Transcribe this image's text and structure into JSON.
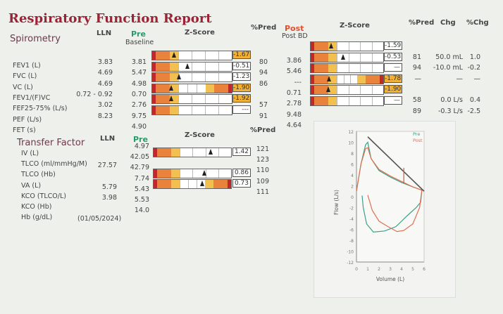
{
  "title": "Respiratory Function Report",
  "spirometry": {
    "section": "Spirometry",
    "lln_header": "LLN",
    "pre_header": "Pre",
    "pre_sub": "Baseline",
    "z_header": "Z-Score",
    "pred_header": "%Pred",
    "post_header": "Post",
    "post_sub": "Post BD",
    "post_z_header": "Z-Score",
    "post_pred_header": "%Pred",
    "chg_header": "Chg",
    "pchg_header": "%Chg",
    "rows": [
      {
        "label": "FEV1 (L)",
        "lln": "3.83",
        "pre": "3.81",
        "pre_pred": "80",
        "post": "3.86",
        "post_pred": "81",
        "chg": "50.0 mL",
        "pchg": "1.0"
      },
      {
        "label": "FVC (L)",
        "lln": "4.69",
        "pre": "5.47",
        "pre_pred": "94",
        "post": "5.46",
        "post_pred": "94",
        "chg": "-10.0 mL",
        "pchg": "-0.2"
      },
      {
        "label": "VC (L)",
        "lln": "4.69",
        "pre": "4.98",
        "pre_pred": "86",
        "post": "---",
        "post_pred": "—",
        "chg": "—",
        "pchg": "—"
      },
      {
        "label": "FEV1/(F)VC",
        "lln": "0.72 - 0.92",
        "pre": "0.70",
        "pre_pred": "",
        "post": "0.71",
        "post_pred": "",
        "chg": "",
        "pchg": ""
      },
      {
        "label": "FEF25-75% (L/s)",
        "lln": "3.02",
        "pre": "2.76",
        "pre_pred": "57",
        "post": "2.78",
        "post_pred": "58",
        "chg": "0.0 L/s",
        "pchg": "0.4"
      },
      {
        "label": "PEF (L/s)",
        "lln": "8.23",
        "pre": "9.75",
        "pre_pred": "91",
        "post": "9.48",
        "post_pred": "89",
        "chg": "-0.3 L/s",
        "pchg": "-2.5"
      },
      {
        "label": "FET (s)",
        "lln": "",
        "pre": "4.90",
        "pre_pred": "",
        "post": "4.64",
        "post_pred": "",
        "chg": "",
        "pchg": ""
      }
    ],
    "pre_z": [
      {
        "text": "-1.67",
        "z": -1.67,
        "hi": true,
        "two": false
      },
      {
        "text": "-0.51",
        "z": -0.51,
        "hi": false,
        "two": false
      },
      {
        "text": "-1.23",
        "z": -1.23,
        "hi": false,
        "two": false
      },
      {
        "text": "-1.90",
        "z": -1.9,
        "hi": true,
        "two": true
      },
      {
        "text": "-1.92",
        "z": -1.92,
        "hi": true,
        "two": false
      },
      {
        "text": "---",
        "z": null,
        "hi": false,
        "two": false
      }
    ],
    "post_z": [
      {
        "text": "-1.59",
        "z": -1.59,
        "hi": false,
        "two": false
      },
      {
        "text": "-0.53",
        "z": -0.53,
        "hi": false,
        "two": false
      },
      {
        "text": "—",
        "z": null,
        "hi": false,
        "two": false
      },
      {
        "text": "-1.78",
        "z": -1.78,
        "hi": true,
        "two": true
      },
      {
        "text": "-1.90",
        "z": -1.9,
        "hi": true,
        "two": false
      },
      {
        "text": "—",
        "z": null,
        "hi": false,
        "two": false
      }
    ]
  },
  "transfer": {
    "section": "Transfer Factor",
    "lln_header": "LLN",
    "pre_header": "Pre",
    "z_header": "Z-Score",
    "pred_header": "%Pred",
    "rows": [
      {
        "label": "IV (L)",
        "lln": "",
        "pre": "4.97"
      },
      {
        "label": "TLCO (ml/mmHg/M)",
        "lln": "27.57",
        "pre": "42.05"
      },
      {
        "label": "TLCO (Hb)",
        "lln": "",
        "pre": "42.79"
      },
      {
        "label": "VA (L)",
        "lln": "5.79",
        "pre": "7.74"
      },
      {
        "label": "KCO (TLCO/L)",
        "lln": "3.98",
        "pre": "5.43"
      },
      {
        "label": "KCO (Hb)",
        "lln": "",
        "pre": "5.53"
      },
      {
        "label": "Hb (g/dL)",
        "lln": "(01/05/2024)",
        "pre": "14.0"
      }
    ],
    "pred": [
      "121",
      "123",
      "110",
      "109",
      "111"
    ],
    "z": [
      {
        "text": "1.42",
        "z": 1.42,
        "hi": false,
        "two": false
      },
      {
        "text": "0.86",
        "z": 0.86,
        "hi": false,
        "two": false
      },
      {
        "text": "0.73",
        "z": 0.73,
        "hi": false,
        "two": true
      }
    ]
  },
  "colors": {
    "red": "#c0282a",
    "orange": "#e9823a",
    "yellow": "#f2c050",
    "pre": "#3aa08a",
    "post": "#e07050",
    "predicted": "#555555"
  },
  "chart_data": {
    "type": "line",
    "xlabel": "Volume (L)",
    "ylabel": "Flow (L/s)",
    "xlim": [
      0,
      6
    ],
    "ylim": [
      -12,
      12
    ],
    "xticks": [
      "0",
      "1",
      "2",
      "3",
      "4",
      "5",
      "6"
    ],
    "yticks": [
      "12",
      "10",
      "8",
      "6",
      "4",
      "2",
      "0",
      "-2",
      "-4",
      "-6",
      "-8",
      "-10",
      "-12"
    ],
    "legend": "top-right",
    "series": [
      {
        "name": "Pre",
        "color": "#3aa08a",
        "points": [
          [
            0,
            1
          ],
          [
            0.4,
            6
          ],
          [
            0.8,
            9.5
          ],
          [
            1,
            10
          ],
          [
            1.3,
            7
          ],
          [
            2,
            4.8
          ],
          [
            3,
            3.6
          ],
          [
            4,
            2.6
          ],
          [
            5,
            1.8
          ],
          [
            5.8,
            1.2
          ],
          [
            5.7,
            -1
          ],
          [
            5.3,
            -2
          ],
          [
            4.5,
            -3.5
          ],
          [
            3.5,
            -5.5
          ],
          [
            2.5,
            -6.3
          ],
          [
            1.5,
            -6.5
          ],
          [
            0.9,
            -5
          ],
          [
            0.6,
            -2
          ],
          [
            0.5,
            0.2
          ]
        ]
      },
      {
        "name": "Post",
        "color": "#e07050",
        "points": [
          [
            0,
            1
          ],
          [
            0.4,
            6
          ],
          [
            0.8,
            8.8
          ],
          [
            1,
            9
          ],
          [
            1.3,
            7
          ],
          [
            2,
            5
          ],
          [
            3,
            3.8
          ],
          [
            4,
            2.8
          ],
          [
            5,
            1.8
          ],
          [
            5.8,
            1.2
          ],
          [
            5.6,
            -2
          ],
          [
            5,
            -5
          ],
          [
            4.2,
            -6.2
          ],
          [
            3.6,
            -6.4
          ],
          [
            2.8,
            -5.5
          ],
          [
            2,
            -4.5
          ],
          [
            1.4,
            -2.5
          ],
          [
            1,
            0.3
          ]
        ]
      },
      {
        "name": "",
        "color": "#555555",
        "points": [
          [
            1,
            11
          ],
          [
            6,
            1
          ]
        ]
      },
      {
        "name": "",
        "color": "#c0603a",
        "points": [
          [
            4.2,
            2.5
          ],
          [
            4.2,
            5.3
          ]
        ]
      }
    ]
  }
}
